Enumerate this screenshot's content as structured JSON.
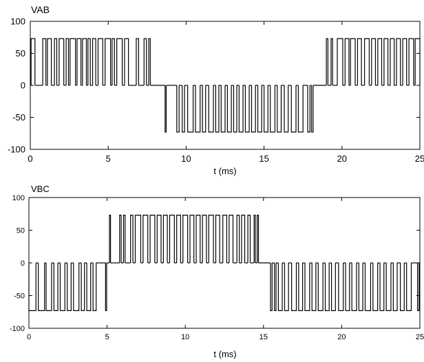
{
  "chart_data": [
    {
      "type": "line",
      "title": "VAB",
      "xlabel": "t (ms)",
      "ylabel": "",
      "xlim": [
        0,
        25
      ],
      "ylim": [
        -100,
        100
      ],
      "xticks": [
        0,
        5,
        10,
        15,
        20,
        25
      ],
      "yticks": [
        -100,
        -50,
        0,
        50,
        100
      ],
      "xtick_labels": [
        "0",
        "5",
        "10",
        "15",
        "20",
        "25"
      ],
      "ytick_labels": [
        "-100",
        "-50",
        "0",
        "50",
        "100"
      ],
      "grid": false,
      "series": [
        {
          "amplitude": 73,
          "pulses": [
            {
              "start": 0.05,
              "end": 0.3,
              "level": 73
            },
            {
              "start": 0.8,
              "end": 1.0,
              "level": 73
            },
            {
              "start": 1.1,
              "end": 1.35,
              "level": 73
            },
            {
              "start": 1.55,
              "end": 1.7,
              "level": 73
            },
            {
              "start": 1.85,
              "end": 2.15,
              "level": 73
            },
            {
              "start": 2.3,
              "end": 2.45,
              "level": 73
            },
            {
              "start": 2.55,
              "end": 2.9,
              "level": 73
            },
            {
              "start": 3.0,
              "end": 3.25,
              "level": 73
            },
            {
              "start": 3.35,
              "end": 3.6,
              "level": 73
            },
            {
              "start": 3.7,
              "end": 3.85,
              "level": 73
            },
            {
              "start": 4.0,
              "end": 4.2,
              "level": 73
            },
            {
              "start": 4.35,
              "end": 4.65,
              "level": 73
            },
            {
              "start": 4.8,
              "end": 5.15,
              "level": 73
            },
            {
              "start": 5.25,
              "end": 5.4,
              "level": 73
            },
            {
              "start": 5.55,
              "end": 5.9,
              "level": 73
            },
            {
              "start": 6.05,
              "end": 6.3,
              "level": 73
            },
            {
              "start": 6.8,
              "end": 6.95,
              "level": 73
            },
            {
              "start": 7.3,
              "end": 7.45,
              "level": 73
            },
            {
              "start": 7.6,
              "end": 7.7,
              "level": 73
            },
            {
              "start": 8.65,
              "end": 8.72,
              "level": -73
            },
            {
              "start": 9.4,
              "end": 9.55,
              "level": -73
            },
            {
              "start": 9.75,
              "end": 9.9,
              "level": -73
            },
            {
              "start": 10.1,
              "end": 10.45,
              "level": -73
            },
            {
              "start": 10.6,
              "end": 10.9,
              "level": -73
            },
            {
              "start": 11.05,
              "end": 11.25,
              "level": -73
            },
            {
              "start": 11.45,
              "end": 11.75,
              "level": -73
            },
            {
              "start": 11.9,
              "end": 12.1,
              "level": -73
            },
            {
              "start": 12.25,
              "end": 12.5,
              "level": -73
            },
            {
              "start": 12.65,
              "end": 12.9,
              "level": -73
            },
            {
              "start": 13.05,
              "end": 13.25,
              "level": -73
            },
            {
              "start": 13.4,
              "end": 13.65,
              "level": -73
            },
            {
              "start": 13.8,
              "end": 14.05,
              "level": -73
            },
            {
              "start": 14.2,
              "end": 14.45,
              "level": -73
            },
            {
              "start": 14.6,
              "end": 14.85,
              "level": -73
            },
            {
              "start": 15.0,
              "end": 15.25,
              "level": -73
            },
            {
              "start": 15.4,
              "end": 15.7,
              "level": -73
            },
            {
              "start": 15.85,
              "end": 16.1,
              "level": -73
            },
            {
              "start": 16.3,
              "end": 16.55,
              "level": -73
            },
            {
              "start": 16.75,
              "end": 17.05,
              "level": -73
            },
            {
              "start": 17.2,
              "end": 17.5,
              "level": -73
            },
            {
              "start": 17.8,
              "end": 17.95,
              "level": -73
            },
            {
              "start": 18.05,
              "end": 18.15,
              "level": -73
            },
            {
              "start": 19.0,
              "end": 19.1,
              "level": 73
            },
            {
              "start": 19.3,
              "end": 19.4,
              "level": 73
            },
            {
              "start": 19.7,
              "end": 20.05,
              "level": 73
            },
            {
              "start": 20.2,
              "end": 20.45,
              "level": 73
            },
            {
              "start": 20.55,
              "end": 20.85,
              "level": 73
            },
            {
              "start": 21.0,
              "end": 21.25,
              "level": 73
            },
            {
              "start": 21.45,
              "end": 21.75,
              "level": 73
            },
            {
              "start": 21.9,
              "end": 22.15,
              "level": 73
            },
            {
              "start": 22.3,
              "end": 22.55,
              "level": 73
            },
            {
              "start": 22.7,
              "end": 22.95,
              "level": 73
            },
            {
              "start": 23.1,
              "end": 23.35,
              "level": 73
            },
            {
              "start": 23.5,
              "end": 23.75,
              "level": 73
            },
            {
              "start": 23.9,
              "end": 24.15,
              "level": 73
            },
            {
              "start": 24.3,
              "end": 24.6,
              "level": 73
            },
            {
              "start": 24.7,
              "end": 25.0,
              "level": 73
            }
          ]
        }
      ]
    },
    {
      "type": "line",
      "title": "VBC",
      "xlabel": "t (ms)",
      "ylabel": "",
      "xlim": [
        0,
        25
      ],
      "ylim": [
        -100,
        100
      ],
      "xticks": [
        0,
        5,
        10,
        15,
        20,
        25
      ],
      "yticks": [
        -100,
        -50,
        0,
        50,
        100
      ],
      "xtick_labels": [
        "0",
        "5",
        "10",
        "15",
        "20",
        "25"
      ],
      "ytick_labels": [
        "-100",
        "-50",
        "0",
        "50",
        "100"
      ],
      "grid": false,
      "series": [
        {
          "amplitude": 73,
          "pulses": [
            {
              "start": 0.0,
              "end": 0.45,
              "level": -73
            },
            {
              "start": 0.6,
              "end": 1.0,
              "level": -73
            },
            {
              "start": 1.1,
              "end": 1.45,
              "level": -73
            },
            {
              "start": 1.6,
              "end": 1.85,
              "level": -73
            },
            {
              "start": 2.0,
              "end": 2.3,
              "level": -73
            },
            {
              "start": 2.45,
              "end": 2.7,
              "level": -73
            },
            {
              "start": 2.85,
              "end": 3.2,
              "level": -73
            },
            {
              "start": 3.35,
              "end": 3.55,
              "level": -73
            },
            {
              "start": 3.7,
              "end": 3.95,
              "level": -73
            },
            {
              "start": 4.1,
              "end": 4.3,
              "level": -73
            },
            {
              "start": 4.9,
              "end": 4.97,
              "level": -73
            },
            {
              "start": 5.15,
              "end": 5.22,
              "level": 73
            },
            {
              "start": 5.8,
              "end": 5.9,
              "level": 73
            },
            {
              "start": 6.05,
              "end": 6.15,
              "level": 73
            },
            {
              "start": 6.5,
              "end": 6.65,
              "level": 73
            },
            {
              "start": 6.8,
              "end": 7.15,
              "level": 73
            },
            {
              "start": 7.3,
              "end": 7.6,
              "level": 73
            },
            {
              "start": 7.75,
              "end": 8.05,
              "level": 73
            },
            {
              "start": 8.2,
              "end": 8.45,
              "level": 73
            },
            {
              "start": 8.6,
              "end": 8.85,
              "level": 73
            },
            {
              "start": 9.0,
              "end": 9.3,
              "level": 73
            },
            {
              "start": 9.45,
              "end": 9.7,
              "level": 73
            },
            {
              "start": 9.85,
              "end": 10.15,
              "level": 73
            },
            {
              "start": 10.3,
              "end": 10.55,
              "level": 73
            },
            {
              "start": 10.7,
              "end": 10.95,
              "level": 73
            },
            {
              "start": 11.1,
              "end": 11.35,
              "level": 73
            },
            {
              "start": 11.5,
              "end": 11.8,
              "level": 73
            },
            {
              "start": 11.95,
              "end": 12.2,
              "level": 73
            },
            {
              "start": 12.4,
              "end": 12.65,
              "level": 73
            },
            {
              "start": 12.8,
              "end": 13.05,
              "level": 73
            },
            {
              "start": 13.3,
              "end": 13.45,
              "level": 73
            },
            {
              "start": 13.6,
              "end": 13.8,
              "level": 73
            },
            {
              "start": 14.0,
              "end": 14.15,
              "level": 73
            },
            {
              "start": 14.4,
              "end": 14.48,
              "level": 73
            },
            {
              "start": 14.6,
              "end": 14.68,
              "level": 73
            },
            {
              "start": 15.45,
              "end": 15.55,
              "level": -73
            },
            {
              "start": 15.7,
              "end": 15.8,
              "level": -73
            },
            {
              "start": 15.95,
              "end": 16.2,
              "level": -73
            },
            {
              "start": 16.35,
              "end": 16.6,
              "level": -73
            },
            {
              "start": 16.8,
              "end": 17.1,
              "level": -73
            },
            {
              "start": 17.25,
              "end": 17.5,
              "level": -73
            },
            {
              "start": 17.65,
              "end": 17.95,
              "level": -73
            },
            {
              "start": 18.1,
              "end": 18.35,
              "level": -73
            },
            {
              "start": 18.5,
              "end": 18.8,
              "level": -73
            },
            {
              "start": 18.95,
              "end": 19.2,
              "level": -73
            },
            {
              "start": 19.35,
              "end": 19.6,
              "level": -73
            },
            {
              "start": 19.8,
              "end": 20.1,
              "level": -73
            },
            {
              "start": 20.25,
              "end": 20.5,
              "level": -73
            },
            {
              "start": 20.65,
              "end": 20.95,
              "level": -73
            },
            {
              "start": 21.1,
              "end": 21.35,
              "level": -73
            },
            {
              "start": 21.5,
              "end": 21.85,
              "level": -73
            },
            {
              "start": 22.0,
              "end": 22.3,
              "level": -73
            },
            {
              "start": 22.45,
              "end": 22.7,
              "level": -73
            },
            {
              "start": 22.85,
              "end": 23.15,
              "level": -73
            },
            {
              "start": 23.3,
              "end": 23.55,
              "level": -73
            },
            {
              "start": 23.75,
              "end": 24.0,
              "level": -73
            },
            {
              "start": 24.15,
              "end": 24.45,
              "level": -73
            },
            {
              "start": 24.85,
              "end": 24.95,
              "level": -73
            }
          ]
        }
      ]
    }
  ]
}
